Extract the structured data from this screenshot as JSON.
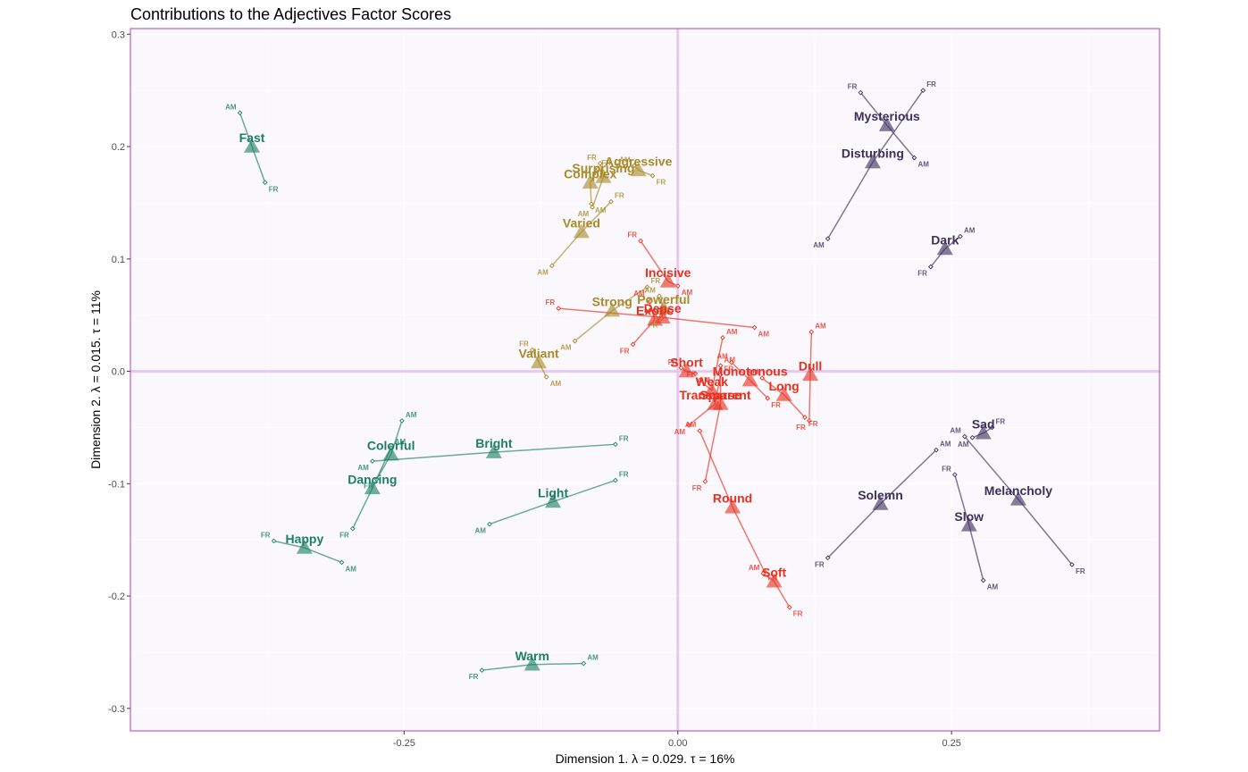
{
  "chart_data": {
    "type": "scatter",
    "title": "Contributions to the Adjectives Factor Scores",
    "xlabel": "Dimension 1.   λ = 0.029.  τ = 16%",
    "ylabel": "Dimension 2.   λ = 0.015.  τ = 11%",
    "xlim": [
      -0.5,
      0.44
    ],
    "ylim": [
      -0.32,
      0.305
    ],
    "x_ticks": [
      -0.25,
      0.0,
      0.25
    ],
    "x_tick_labels": [
      "-0.25",
      "0.00",
      "0.25"
    ],
    "y_ticks": [
      -0.3,
      -0.2,
      -0.1,
      0.0,
      0.1,
      0.2,
      0.3
    ],
    "y_tick_labels": [
      "-0.3",
      "-0.2",
      "-0.1",
      "0.0",
      "0.1",
      "0.2",
      "0.3"
    ],
    "grid": true,
    "colors": {
      "green": "#1b7f63",
      "gold": "#a88a28",
      "red": "#e8301f",
      "purple": "#3e2f5b",
      "zero_line": "#e6c8f0",
      "panel_bg": "#faf8fd",
      "panel_border": "#b040b8"
    },
    "points": [
      {
        "label": "Fast",
        "x": -0.389,
        "y": 0.2,
        "group": "green",
        "am": [
          -0.4,
          0.23
        ],
        "fr": [
          -0.377,
          0.168
        ],
        "am_label": "AM",
        "fr_label": "FR"
      },
      {
        "label": "Colorful",
        "x": -0.262,
        "y": -0.074,
        "group": "green",
        "am": [
          -0.252,
          -0.044
        ],
        "fr": [
          -0.275,
          -0.096
        ],
        "am_label": "AM",
        "fr_label": "FR"
      },
      {
        "label": "Bright",
        "x": -0.168,
        "y": -0.072,
        "group": "green",
        "am": [
          -0.279,
          -0.08
        ],
        "fr": [
          -0.057,
          -0.065
        ],
        "am_label": "AM",
        "fr_label": "FR"
      },
      {
        "label": "Dancing",
        "x": -0.279,
        "y": -0.104,
        "group": "green",
        "am": [
          -0.262,
          -0.068
        ],
        "fr": [
          -0.297,
          -0.14
        ],
        "am_label": "AM",
        "fr_label": "FR"
      },
      {
        "label": "Light",
        "x": -0.114,
        "y": -0.116,
        "group": "green",
        "am": [
          -0.172,
          -0.136
        ],
        "fr": [
          -0.057,
          -0.097
        ],
        "am_label": "AM",
        "fr_label": "FR"
      },
      {
        "label": "Happy",
        "x": -0.341,
        "y": -0.157,
        "group": "green",
        "am": [
          -0.307,
          -0.17
        ],
        "fr": [
          -0.369,
          -0.151
        ],
        "am_label": "AM",
        "fr_label": "FR"
      },
      {
        "label": "Warm",
        "x": -0.133,
        "y": -0.261,
        "group": "green",
        "am": [
          -0.086,
          -0.26
        ],
        "fr": [
          -0.179,
          -0.266
        ],
        "am_label": "AM",
        "fr_label": "FR"
      },
      {
        "label": "Complex",
        "x": -0.08,
        "y": 0.168,
        "group": "gold",
        "am": [
          -0.079,
          0.149
        ],
        "fr": [
          -0.073,
          0.18
        ],
        "am_label": "AM",
        "fr_label": "FR"
      },
      {
        "label": "Aggressive",
        "x": -0.036,
        "y": 0.179,
        "group": "gold",
        "am": [
          -0.04,
          0.183
        ],
        "fr": [
          -0.023,
          0.174
        ],
        "am_label": "AM",
        "fr_label": "FR"
      },
      {
        "label": "Surprising",
        "x": -0.068,
        "y": 0.173,
        "group": "gold",
        "am": [
          -0.078,
          0.146
        ],
        "fr": [
          -0.071,
          0.185
        ],
        "am_label": "AM",
        "fr_label": "FR"
      },
      {
        "label": "Varied",
        "x": -0.088,
        "y": 0.124,
        "group": "gold",
        "am": [
          -0.115,
          0.094
        ],
        "fr": [
          -0.061,
          0.151
        ],
        "am_label": "AM",
        "fr_label": "FR"
      },
      {
        "label": "Strong",
        "x": -0.06,
        "y": 0.054,
        "group": "gold",
        "am": [
          -0.094,
          0.027
        ],
        "fr": [
          -0.028,
          0.075
        ],
        "am_label": "AM",
        "fr_label": "FR"
      },
      {
        "label": "Powerful",
        "x": -0.013,
        "y": 0.056,
        "group": "gold",
        "am": [
          -0.017,
          0.067
        ],
        "fr": [
          -0.015,
          0.047
        ],
        "am_label": "AM",
        "fr_label": "FR"
      },
      {
        "label": "Valiant",
        "x": -0.127,
        "y": 0.008,
        "group": "gold",
        "am": [
          -0.12,
          -0.005
        ],
        "fr": [
          -0.133,
          0.019
        ],
        "am_label": "AM",
        "fr_label": "FR"
      },
      {
        "label": "Incisive",
        "x": -0.009,
        "y": 0.08,
        "group": "red",
        "am": [
          0.0,
          0.076
        ],
        "fr": [
          -0.034,
          0.116
        ],
        "am_label": "AM",
        "fr_label": "FR"
      },
      {
        "label": "Exotic",
        "x": -0.021,
        "y": 0.046,
        "group": "red",
        "am": [
          -0.027,
          0.064
        ],
        "fr": [
          -0.041,
          0.024
        ],
        "am_label": "AM",
        "fr_label": "FR"
      },
      {
        "label": "Dense",
        "x": -0.014,
        "y": 0.048,
        "group": "red",
        "am": [
          0.07,
          0.039
        ],
        "fr": [
          -0.109,
          0.056
        ],
        "am_label": "AM",
        "fr_label": "FR"
      },
      {
        "label": "Short",
        "x": 0.008,
        "y": 0.0,
        "group": "red",
        "am": [
          0.016,
          -0.002
        ],
        "fr": [
          0.003,
          0.003
        ],
        "am_label": "AM",
        "fr_label": "FR"
      },
      {
        "label": "Weak",
        "x": 0.031,
        "y": -0.017,
        "group": "red",
        "am": [
          0.041,
          0.03
        ],
        "fr": [
          0.02,
          -0.008
        ],
        "am_label": "AM",
        "fr_label": "FR"
      },
      {
        "label": "Transparent",
        "x": 0.034,
        "y": -0.029,
        "group": "red",
        "am": [
          0.01,
          -0.048
        ],
        "fr": [
          0.039,
          -0.003
        ],
        "am_label": "AM",
        "fr_label": "FR"
      },
      {
        "label": "Sparse",
        "x": 0.039,
        "y": -0.029,
        "group": "red",
        "am": [
          0.039,
          0.005
        ],
        "fr": [
          0.025,
          -0.098
        ],
        "am_label": "AM",
        "fr_label": "FR"
      },
      {
        "label": "Monotonous",
        "x": 0.066,
        "y": -0.008,
        "group": "red",
        "am": [
          0.049,
          0.008
        ],
        "fr": [
          0.082,
          -0.024
        ],
        "am_label": "AM",
        "fr_label": "FR"
      },
      {
        "label": "Long",
        "x": 0.097,
        "y": -0.021,
        "group": "red",
        "am": [
          0.077,
          -0.006
        ],
        "fr": [
          0.116,
          -0.041
        ],
        "am_label": "AM",
        "fr_label": "FR"
      },
      {
        "label": "Dull",
        "x": 0.121,
        "y": -0.003,
        "group": "red",
        "am": [
          0.122,
          0.035
        ],
        "fr": [
          0.12,
          -0.044
        ],
        "am_label": "AM",
        "fr_label": "FR"
      },
      {
        "label": "Round",
        "x": 0.05,
        "y": -0.121,
        "group": "red",
        "am": [
          0.02,
          -0.053
        ],
        "fr": [
          0.079,
          -0.178
        ],
        "am_label": "AM",
        "fr_label": "FR"
      },
      {
        "label": "Soft",
        "x": 0.088,
        "y": -0.187,
        "group": "red",
        "am": [
          0.078,
          -0.18
        ],
        "fr": [
          0.102,
          -0.21
        ],
        "am_label": "AM",
        "fr_label": "FR"
      },
      {
        "label": "Mysterious",
        "x": 0.191,
        "y": 0.219,
        "group": "purple",
        "am": [
          0.216,
          0.19
        ],
        "fr": [
          0.167,
          0.248
        ],
        "am_label": "AM",
        "fr_label": "FR"
      },
      {
        "label": "Disturbing",
        "x": 0.178,
        "y": 0.186,
        "group": "purple",
        "am": [
          0.137,
          0.118
        ],
        "fr": [
          0.224,
          0.25
        ],
        "am_label": "AM",
        "fr_label": "FR"
      },
      {
        "label": "Dark",
        "x": 0.244,
        "y": 0.109,
        "group": "purple",
        "am": [
          0.258,
          0.12
        ],
        "fr": [
          0.231,
          0.093
        ],
        "am_label": "AM",
        "fr_label": "FR"
      },
      {
        "label": "Sad",
        "x": 0.279,
        "y": -0.055,
        "group": "purple",
        "am": [
          0.269,
          -0.059
        ],
        "fr": [
          0.287,
          -0.05
        ],
        "am_label": "AM",
        "fr_label": "FR"
      },
      {
        "label": "Solemn",
        "x": 0.185,
        "y": -0.118,
        "group": "purple",
        "am": [
          0.236,
          -0.07
        ],
        "fr": [
          0.137,
          -0.166
        ],
        "am_label": "AM",
        "fr_label": "FR"
      },
      {
        "label": "Melancholy",
        "x": 0.311,
        "y": -0.114,
        "group": "purple",
        "am": [
          0.262,
          -0.058
        ],
        "fr": [
          0.36,
          -0.172
        ],
        "am_label": "AM",
        "fr_label": "FR"
      },
      {
        "label": "Slow",
        "x": 0.266,
        "y": -0.137,
        "group": "purple",
        "am": [
          0.279,
          -0.186
        ],
        "fr": [
          0.253,
          -0.092
        ],
        "am_label": "AM",
        "fr_label": "FR"
      }
    ]
  }
}
